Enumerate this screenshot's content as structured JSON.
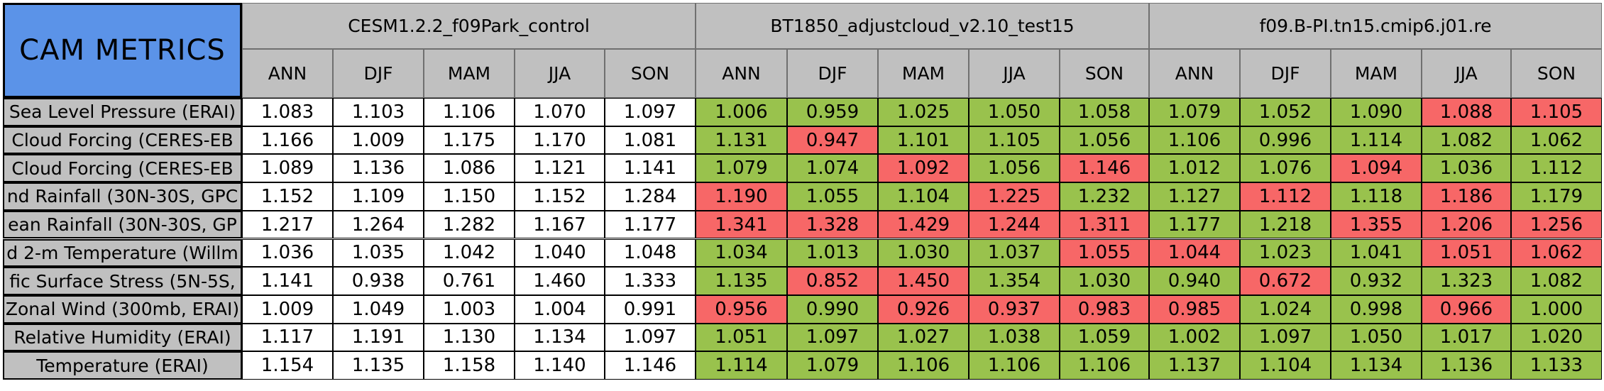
{
  "corner_label": "CAM METRICS",
  "models": [
    "CESM1.2.2_f09Park_control",
    "BT1850_adjustcloud_v2.10_test15",
    "f09.B-PI.tn15.cmip6.j01.re"
  ],
  "seasons": [
    "ANN",
    "DJF",
    "MAM",
    "JJA",
    "SON"
  ],
  "colors": {
    "header": "#c0c0c0",
    "corner": "#5b93e8",
    "better": "#99c24d",
    "worse": "#f76767",
    "baseline": "#ffffff"
  },
  "rows": [
    {
      "label": "Sea Level Pressure (ERAI)",
      "values": [
        [
          "1.083",
          "1.103",
          "1.106",
          "1.070",
          "1.097"
        ],
        [
          "1.006",
          "0.959",
          "1.025",
          "1.050",
          "1.058"
        ],
        [
          "1.079",
          "1.052",
          "1.090",
          "1.088",
          "1.105"
        ]
      ],
      "status": [
        [
          "w",
          "w",
          "w",
          "w",
          "w"
        ],
        [
          "g",
          "g",
          "g",
          "g",
          "g"
        ],
        [
          "g",
          "g",
          "g",
          "r",
          "r"
        ]
      ]
    },
    {
      "label": "Cloud Forcing (CERES-EB",
      "values": [
        [
          "1.166",
          "1.009",
          "1.175",
          "1.170",
          "1.081"
        ],
        [
          "1.131",
          "0.947",
          "1.101",
          "1.105",
          "1.056"
        ],
        [
          "1.106",
          "0.996",
          "1.114",
          "1.082",
          "1.062"
        ]
      ],
      "status": [
        [
          "w",
          "w",
          "w",
          "w",
          "w"
        ],
        [
          "g",
          "r",
          "g",
          "g",
          "g"
        ],
        [
          "g",
          "g",
          "g",
          "g",
          "g"
        ]
      ]
    },
    {
      "label": "Cloud Forcing (CERES-EB",
      "values": [
        [
          "1.089",
          "1.136",
          "1.086",
          "1.121",
          "1.141"
        ],
        [
          "1.079",
          "1.074",
          "1.092",
          "1.056",
          "1.146"
        ],
        [
          "1.012",
          "1.076",
          "1.094",
          "1.036",
          "1.112"
        ]
      ],
      "status": [
        [
          "w",
          "w",
          "w",
          "w",
          "w"
        ],
        [
          "g",
          "g",
          "r",
          "g",
          "r"
        ],
        [
          "g",
          "g",
          "r",
          "g",
          "g"
        ]
      ]
    },
    {
      "label": "nd Rainfall (30N-30S, GPC",
      "values": [
        [
          "1.152",
          "1.109",
          "1.150",
          "1.152",
          "1.284"
        ],
        [
          "1.190",
          "1.055",
          "1.104",
          "1.225",
          "1.232"
        ],
        [
          "1.127",
          "1.112",
          "1.118",
          "1.186",
          "1.179"
        ]
      ],
      "status": [
        [
          "w",
          "w",
          "w",
          "w",
          "w"
        ],
        [
          "r",
          "g",
          "g",
          "r",
          "g"
        ],
        [
          "g",
          "r",
          "g",
          "r",
          "g"
        ]
      ]
    },
    {
      "label": "ean Rainfall (30N-30S, GP",
      "values": [
        [
          "1.217",
          "1.264",
          "1.282",
          "1.167",
          "1.177"
        ],
        [
          "1.341",
          "1.328",
          "1.429",
          "1.244",
          "1.311"
        ],
        [
          "1.177",
          "1.218",
          "1.355",
          "1.206",
          "1.256"
        ]
      ],
      "status": [
        [
          "w",
          "w",
          "w",
          "w",
          "w"
        ],
        [
          "r",
          "r",
          "r",
          "r",
          "r"
        ],
        [
          "g",
          "g",
          "r",
          "r",
          "r"
        ]
      ]
    },
    {
      "label": "d 2-m Temperature (Willm",
      "values": [
        [
          "1.036",
          "1.035",
          "1.042",
          "1.040",
          "1.048"
        ],
        [
          "1.034",
          "1.013",
          "1.030",
          "1.037",
          "1.055"
        ],
        [
          "1.044",
          "1.023",
          "1.041",
          "1.051",
          "1.062"
        ]
      ],
      "status": [
        [
          "w",
          "w",
          "w",
          "w",
          "w"
        ],
        [
          "g",
          "g",
          "g",
          "g",
          "r"
        ],
        [
          "r",
          "g",
          "g",
          "r",
          "r"
        ]
      ]
    },
    {
      "label": "fic Surface Stress (5N-5S,",
      "values": [
        [
          "1.141",
          "0.938",
          "0.761",
          "1.460",
          "1.333"
        ],
        [
          "1.135",
          "0.852",
          "1.450",
          "1.354",
          "1.030"
        ],
        [
          "0.940",
          "0.672",
          "0.932",
          "1.323",
          "1.082"
        ]
      ],
      "status": [
        [
          "w",
          "w",
          "w",
          "w",
          "w"
        ],
        [
          "g",
          "r",
          "r",
          "g",
          "g"
        ],
        [
          "g",
          "r",
          "g",
          "g",
          "g"
        ]
      ]
    },
    {
      "label": "Zonal Wind (300mb, ERAI)",
      "values": [
        [
          "1.009",
          "1.049",
          "1.003",
          "1.004",
          "0.991"
        ],
        [
          "0.956",
          "0.990",
          "0.926",
          "0.937",
          "0.983"
        ],
        [
          "0.985",
          "1.024",
          "0.998",
          "0.966",
          "1.000"
        ]
      ],
      "status": [
        [
          "w",
          "w",
          "w",
          "w",
          "w"
        ],
        [
          "r",
          "g",
          "r",
          "r",
          "r"
        ],
        [
          "r",
          "g",
          "g",
          "r",
          "g"
        ]
      ]
    },
    {
      "label": "Relative Humidity (ERAI)",
      "values": [
        [
          "1.117",
          "1.191",
          "1.130",
          "1.134",
          "1.097"
        ],
        [
          "1.051",
          "1.097",
          "1.027",
          "1.038",
          "1.059"
        ],
        [
          "1.002",
          "1.097",
          "1.050",
          "1.017",
          "1.020"
        ]
      ],
      "status": [
        [
          "w",
          "w",
          "w",
          "w",
          "w"
        ],
        [
          "g",
          "g",
          "g",
          "g",
          "g"
        ],
        [
          "g",
          "g",
          "g",
          "g",
          "g"
        ]
      ]
    },
    {
      "label": "Temperature (ERAI)",
      "values": [
        [
          "1.154",
          "1.135",
          "1.158",
          "1.140",
          "1.146"
        ],
        [
          "1.114",
          "1.079",
          "1.106",
          "1.106",
          "1.106"
        ],
        [
          "1.137",
          "1.104",
          "1.134",
          "1.136",
          "1.133"
        ]
      ],
      "status": [
        [
          "w",
          "w",
          "w",
          "w",
          "w"
        ],
        [
          "g",
          "g",
          "g",
          "g",
          "g"
        ],
        [
          "g",
          "g",
          "g",
          "g",
          "g"
        ]
      ]
    }
  ]
}
